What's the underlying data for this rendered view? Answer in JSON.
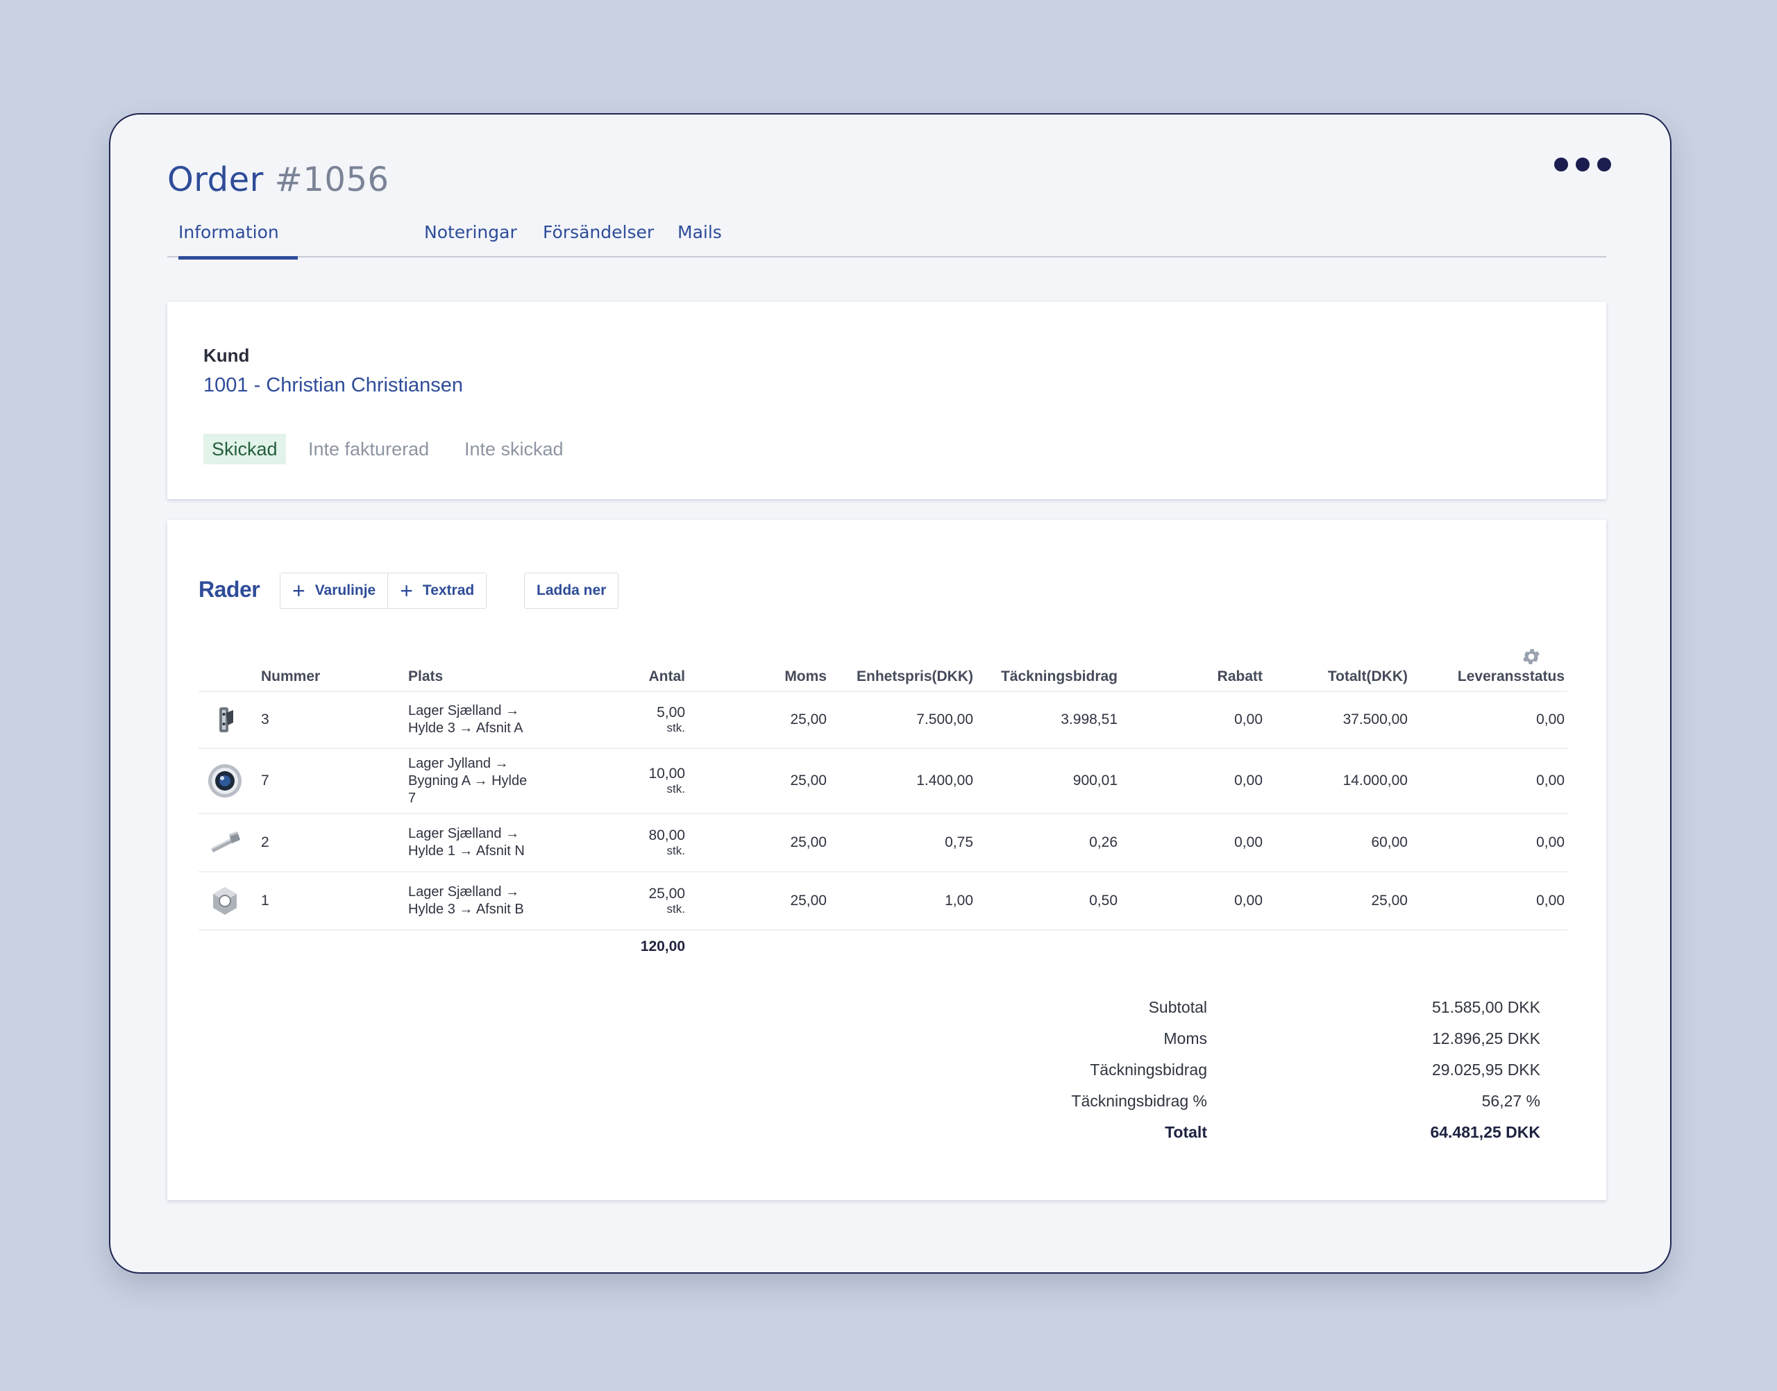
{
  "header": {
    "title_word": "Order",
    "title_number": "#1056"
  },
  "tabs": [
    {
      "label": "Information",
      "active": true
    },
    {
      "label": "Noteringar",
      "active": false
    },
    {
      "label": "Försändelser",
      "active": false
    },
    {
      "label": "Mails",
      "active": false
    }
  ],
  "customer": {
    "label": "Kund",
    "value": "1001 - Christian Christiansen"
  },
  "statuses": [
    {
      "label": "Skickad",
      "active": true
    },
    {
      "label": "Inte fakturerad",
      "active": false
    },
    {
      "label": "Inte skickad",
      "active": false
    }
  ],
  "lines": {
    "title": "Rader",
    "add_item_label": "Varulinje",
    "add_text_label": "Textrad",
    "download_label": "Ladda ner",
    "columns": [
      "Nummer",
      "Plats",
      "Antal",
      "Moms",
      "Enhetspris(DKK)",
      "Täckningsbidrag",
      "Rabatt",
      "Totalt(DKK)",
      "Leveransstatus"
    ],
    "rows": [
      {
        "thumb": "bracket-icon",
        "nummer": "3",
        "plats_1": "Lager Sjælland →",
        "plats_2": "Hylde 3 → Afsnit A",
        "plats_3": "",
        "antal": "5,00",
        "unit": "stk.",
        "moms": "25,00",
        "price": "7.500,00",
        "tb": "3.998,51",
        "rabatt": "0,00",
        "total": "37.500,00",
        "status": "0,00"
      },
      {
        "thumb": "lens-icon",
        "nummer": "7",
        "plats_1": "Lager Jylland →",
        "plats_2": "Bygning A → Hylde",
        "plats_3": "7",
        "antal": "10,00",
        "unit": "stk.",
        "moms": "25,00",
        "price": "1.400,00",
        "tb": "900,01",
        "rabatt": "0,00",
        "total": "14.000,00",
        "status": "0,00"
      },
      {
        "thumb": "bolt-icon",
        "nummer": "2",
        "plats_1": "Lager Sjælland →",
        "plats_2": "Hylde 1 → Afsnit N",
        "plats_3": "",
        "antal": "80,00",
        "unit": "stk.",
        "moms": "25,00",
        "price": "0,75",
        "tb": "0,26",
        "rabatt": "0,00",
        "total": "60,00",
        "status": "0,00"
      },
      {
        "thumb": "nut-icon",
        "nummer": "1",
        "plats_1": "Lager Sjælland →",
        "plats_2": "Hylde 3 → Afsnit B",
        "plats_3": "",
        "antal": "25,00",
        "unit": "stk.",
        "moms": "25,00",
        "price": "1,00",
        "tb": "0,50",
        "rabatt": "0,00",
        "total": "25,00",
        "status": "0,00"
      }
    ],
    "antal_sum": "120,00"
  },
  "totals": [
    {
      "label": "Subtotal",
      "value": "51.585,00 DKK",
      "bold": false
    },
    {
      "label": "Moms",
      "value": "12.896,25 DKK",
      "bold": false
    },
    {
      "label": "Täckningsbidrag",
      "value": "29.025,95 DKK",
      "bold": false
    },
    {
      "label": "Täckningsbidrag %",
      "value": "56,27 %",
      "bold": false
    },
    {
      "label": "Totalt",
      "value": "64.481,25 DKK",
      "bold": true
    }
  ],
  "colors": {
    "accent": "#2e4c98",
    "status_done_bg": "#e2f3ea",
    "status_done_text": "#245f3b"
  }
}
